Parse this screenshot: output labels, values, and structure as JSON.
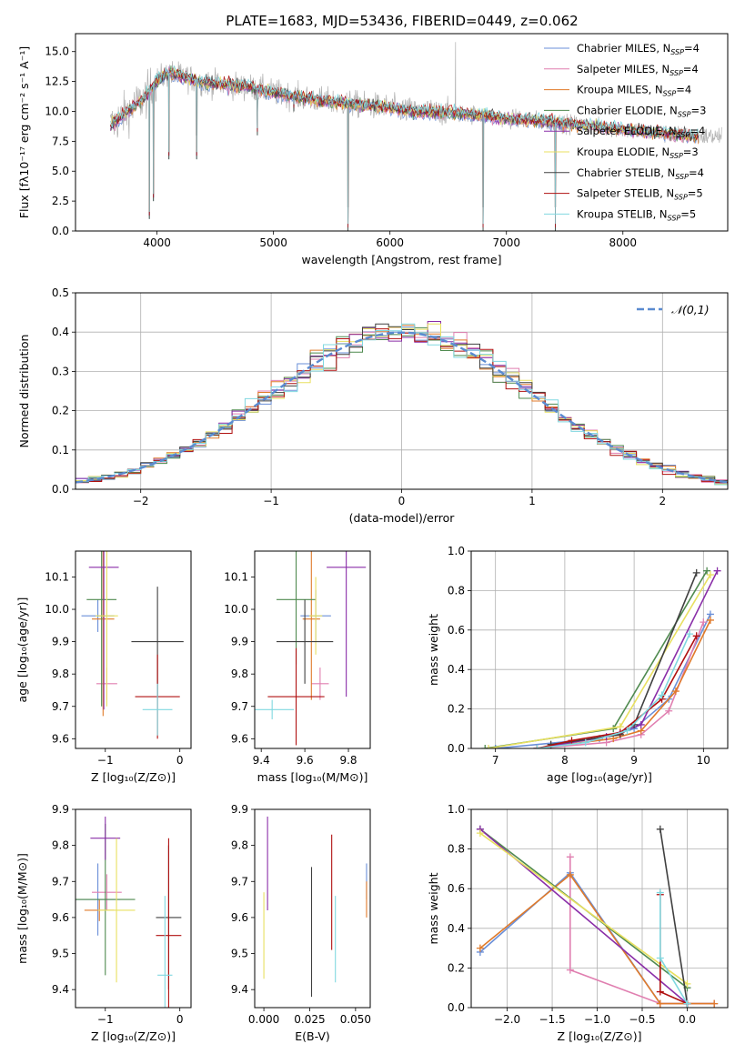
{
  "figure": {
    "title": "PLATE=1683, MJD=53436, FIBERID=0449, z=0.062",
    "palette": [
      "#6a8fd8",
      "#e07fb0",
      "#e07a2a",
      "#4f8a4f",
      "#8a2ea8",
      "#e8e060",
      "#404040",
      "#b01010",
      "#80d8e0",
      "#b0b0b0"
    ]
  },
  "models": [
    {
      "name": "Chabrier MILES",
      "nssp": "4",
      "color": "#6a8fd8"
    },
    {
      "name": "Salpeter MILES",
      "nssp": "4",
      "color": "#e07fb0"
    },
    {
      "name": "Kroupa MILES",
      "nssp": "4",
      "color": "#e07a2a"
    },
    {
      "name": "Chabrier ELODIE",
      "nssp": "3",
      "color": "#4f8a4f"
    },
    {
      "name": "Salpeter ELODIE",
      "nssp": "4",
      "color": "#8a2ea8"
    },
    {
      "name": "Kroupa ELODIE",
      "nssp": "3",
      "color": "#e8e060"
    },
    {
      "name": "Chabrier STELIB",
      "nssp": "4",
      "color": "#404040"
    },
    {
      "name": "Salpeter STELIB",
      "nssp": "5",
      "color": "#b01010"
    },
    {
      "name": "Kroupa STELIB",
      "nssp": "5",
      "color": "#80d8e0"
    }
  ],
  "chart_data": [
    {
      "id": "spectrum",
      "type": "line",
      "xlabel": "wavelength [Angstrom, rest frame]",
      "ylabel": "Flux [fλ10⁻¹⁷ erg cm⁻² s⁻¹ A⁻¹]",
      "xlim": [
        3300,
        8900
      ],
      "ylim": [
        0,
        16.5
      ],
      "xticks": [
        4000,
        5000,
        6000,
        7000,
        8000
      ],
      "yticks": [
        0.0,
        2.5,
        5.0,
        7.5,
        10.0,
        12.5,
        15.0
      ],
      "grid": false,
      "legend": "top-right",
      "continuum": [
        [
          3600,
          8.8
        ],
        [
          3700,
          9.6
        ],
        [
          3800,
          10.4
        ],
        [
          3900,
          11.2
        ],
        [
          4000,
          12.6
        ],
        [
          4100,
          13.2
        ],
        [
          4200,
          13.0
        ],
        [
          4400,
          12.4
        ],
        [
          4600,
          12.2
        ],
        [
          4800,
          12.0
        ],
        [
          5000,
          11.6
        ],
        [
          5200,
          11.2
        ],
        [
          5500,
          10.8
        ],
        [
          5800,
          10.5
        ],
        [
          6000,
          10.3
        ],
        [
          6200,
          10.0
        ],
        [
          6500,
          9.9
        ],
        [
          6800,
          9.7
        ],
        [
          7000,
          9.4
        ],
        [
          7300,
          9.2
        ],
        [
          7500,
          9.0
        ],
        [
          7800,
          8.7
        ],
        [
          8000,
          8.5
        ],
        [
          8300,
          8.2
        ],
        [
          8500,
          8.0
        ],
        [
          8700,
          7.9
        ]
      ],
      "observed_range": [
        3600,
        8850
      ],
      "model_range": [
        3600,
        8650
      ],
      "absorption_lines": [
        [
          3934,
          1.0
        ],
        [
          3969,
          2.5
        ],
        [
          4102,
          6.0
        ],
        [
          4340,
          6.0
        ],
        [
          4861,
          8.0
        ],
        [
          5175,
          10.0
        ],
        [
          5640,
          0.0
        ],
        [
          6800,
          0.0
        ],
        [
          7420,
          0.0
        ]
      ]
    },
    {
      "id": "residuals",
      "type": "step",
      "xlabel": "(data-model)/error",
      "ylabel": "Normed distribution",
      "xlim": [
        -2.5,
        2.5
      ],
      "ylim": [
        0.0,
        0.5
      ],
      "xticks": [
        -2,
        -1,
        0,
        1,
        2
      ],
      "yticks": [
        0.0,
        0.1,
        0.2,
        0.3,
        0.4,
        0.5
      ],
      "grid": true,
      "legend": "top-right",
      "legend_entries": [
        "𝒩(0,1)"
      ],
      "reference_color": "#5b8bd0",
      "bin_width": 0.1
    },
    {
      "id": "age-vs-metallicity",
      "type": "errorbar",
      "xlabel": "Z [log₁₀(Z/Z⊙)]",
      "ylabel": "age [log₁₀(age/yr)]",
      "xlim": [
        -1.4,
        0.15
      ],
      "ylim": [
        9.57,
        10.18
      ],
      "xticks": [
        -1,
        0
      ],
      "yticks": [
        9.6,
        9.7,
        9.8,
        9.9,
        10.0,
        10.1
      ],
      "grid": false,
      "points": [
        {
          "model": 0,
          "x": -1.1,
          "y": 9.98,
          "x_err": 0.22,
          "y_err": 0.05
        },
        {
          "model": 1,
          "x": -0.98,
          "y": 9.77,
          "x_err": 0.14,
          "y_err": 0.05
        },
        {
          "model": 2,
          "x": -1.03,
          "y": 9.97,
          "x_err": 0.15,
          "y_err": 0.3
        },
        {
          "model": 3,
          "x": -1.05,
          "y": 10.03,
          "x_err": 0.2,
          "y_err": 0.33
        },
        {
          "model": 4,
          "x": -1.02,
          "y": 10.13,
          "x_err": 0.2,
          "y_err": 0.44
        },
        {
          "model": 5,
          "x": -0.98,
          "y": 9.98,
          "x_err": 0.15,
          "y_err": 0.28
        },
        {
          "model": 6,
          "x": -0.3,
          "y": 9.9,
          "x_err": 0.35,
          "y_err": 0.17
        },
        {
          "model": 7,
          "x": -0.3,
          "y": 9.73,
          "x_err": 0.3,
          "y_err": 0.13
        },
        {
          "model": 8,
          "x": -0.3,
          "y": 9.69,
          "x_err": 0.2,
          "y_err": 0.08
        }
      ]
    },
    {
      "id": "age-vs-mass",
      "type": "errorbar",
      "xlabel": "mass [log₁₀(M/M⊙)]",
      "ylabel": "",
      "xlim": [
        9.37,
        9.9
      ],
      "ylim": [
        9.57,
        10.18
      ],
      "xticks": [
        9.4,
        9.6,
        9.8
      ],
      "yticks": [
        9.6,
        9.7,
        9.8,
        9.9,
        10.0,
        10.1
      ],
      "grid": false,
      "points": [
        {
          "model": 0,
          "x": 9.65,
          "y": 9.98,
          "x_err": 0.07,
          "y_err": 0.08
        },
        {
          "model": 1,
          "x": 9.67,
          "y": 9.77,
          "x_err": 0.04,
          "y_err": 0.05
        },
        {
          "model": 2,
          "x": 9.63,
          "y": 9.97,
          "x_err": 0.04,
          "y_err": 0.25
        },
        {
          "model": 3,
          "x": 9.56,
          "y": 10.03,
          "x_err": 0.09,
          "y_err": 0.2
        },
        {
          "model": 4,
          "x": 9.79,
          "y": 10.13,
          "x_err": 0.09,
          "y_err": 0.4
        },
        {
          "model": 5,
          "x": 9.65,
          "y": 9.98,
          "x_err": 0.03,
          "y_err": 0.12
        },
        {
          "model": 6,
          "x": 9.6,
          "y": 9.9,
          "x_err": 0.13,
          "y_err": 0.13
        },
        {
          "model": 7,
          "x": 9.56,
          "y": 9.73,
          "x_err": 0.13,
          "y_err": 0.15
        },
        {
          "model": 8,
          "x": 9.45,
          "y": 9.69,
          "x_err": 0.1,
          "y_err": 0.03
        }
      ]
    },
    {
      "id": "mass-weight-vs-age",
      "type": "line",
      "xlabel": "age [log₁₀(age/yr)]",
      "ylabel": "mass weight",
      "xlim": [
        6.65,
        10.35
      ],
      "ylim": [
        0,
        1
      ],
      "xticks": [
        7,
        8,
        9,
        10
      ],
      "yticks": [
        0.0,
        0.2,
        0.4,
        0.6,
        0.8,
        1.0
      ],
      "grid": true,
      "series": [
        {
          "model": 0,
          "points": [
            [
              7.0,
              0.0
            ],
            [
              8.5,
              0.05
            ],
            [
              9.0,
              0.1
            ],
            [
              9.5,
              0.25
            ],
            [
              10.1,
              0.68
            ]
          ]
        },
        {
          "model": 1,
          "points": [
            [
              7.6,
              0.0
            ],
            [
              8.6,
              0.03
            ],
            [
              9.1,
              0.07
            ],
            [
              9.5,
              0.19
            ],
            [
              10.0,
              0.64
            ]
          ]
        },
        {
          "model": 2,
          "points": [
            [
              7.6,
              0.0
            ],
            [
              8.7,
              0.05
            ],
            [
              9.1,
              0.09
            ],
            [
              9.6,
              0.29
            ],
            [
              10.1,
              0.65
            ]
          ]
        },
        {
          "model": 3,
          "points": [
            [
              6.85,
              0.0
            ],
            [
              8.7,
              0.1
            ],
            [
              10.05,
              0.9
            ]
          ]
        },
        {
          "model": 4,
          "points": [
            [
              7.6,
              0.0
            ],
            [
              8.6,
              0.06
            ],
            [
              9.1,
              0.12
            ],
            [
              10.2,
              0.9
            ]
          ]
        },
        {
          "model": 5,
          "points": [
            [
              6.9,
              0.0
            ],
            [
              8.8,
              0.11
            ],
            [
              10.1,
              0.88
            ]
          ]
        },
        {
          "model": 6,
          "points": [
            [
              7.8,
              0.02
            ],
            [
              8.8,
              0.07
            ],
            [
              9.0,
              0.12
            ],
            [
              9.9,
              0.89
            ]
          ]
        },
        {
          "model": 7,
          "points": [
            [
              7.6,
              0.0
            ],
            [
              8.1,
              0.04
            ],
            [
              8.8,
              0.08
            ],
            [
              9.4,
              0.25
            ],
            [
              9.9,
              0.57
            ]
          ]
        },
        {
          "model": 8,
          "points": [
            [
              7.6,
              0.0
            ],
            [
              8.3,
              0.03
            ],
            [
              8.9,
              0.09
            ],
            [
              9.4,
              0.27
            ],
            [
              9.8,
              0.58
            ]
          ]
        }
      ]
    },
    {
      "id": "mass-vs-metallicity",
      "type": "errorbar",
      "xlabel": "Z [log₁₀(Z/Z⊙)]",
      "ylabel": "mass [log₁₀(M/M⊙)]",
      "xlim": [
        -1.4,
        0.15
      ],
      "ylim": [
        9.35,
        9.9
      ],
      "xticks": [
        -1,
        0
      ],
      "yticks": [
        9.4,
        9.5,
        9.6,
        9.7,
        9.8,
        9.9
      ],
      "grid": false,
      "points": [
        {
          "model": 0,
          "x": -1.1,
          "y": 9.65,
          "x_err": 0.3,
          "y_err": 0.1
        },
        {
          "model": 1,
          "x": -0.98,
          "y": 9.67,
          "x_err": 0.2,
          "y_err": 0.05
        },
        {
          "model": 2,
          "x": -1.08,
          "y": 9.62,
          "x_err": 0.2,
          "y_err": 0.03
        },
        {
          "model": 3,
          "x": -1.0,
          "y": 9.65,
          "x_err": 0.4,
          "y_err": 0.21
        },
        {
          "model": 4,
          "x": -1.0,
          "y": 9.82,
          "x_err": 0.2,
          "y_err": 0.06
        },
        {
          "model": 5,
          "x": -0.85,
          "y": 9.62,
          "x_err": 0.25,
          "y_err": 0.2
        },
        {
          "model": 6,
          "x": -0.15,
          "y": 9.6,
          "x_err": 0.17,
          "y_err": 0.2
        },
        {
          "model": 7,
          "x": -0.15,
          "y": 9.55,
          "x_err": 0.17,
          "y_err": 0.27
        },
        {
          "model": 8,
          "x": -0.2,
          "y": 9.44,
          "x_err": 0.1,
          "y_err": 0.22
        }
      ]
    },
    {
      "id": "mass-vs-ebv",
      "type": "errorbar",
      "xlabel": "E(B-V)",
      "ylabel": "",
      "xlim": [
        -0.005,
        0.058
      ],
      "ylim": [
        9.35,
        9.9
      ],
      "xticks": [
        0.0,
        0.025,
        0.05
      ],
      "yticks": [
        9.4,
        9.5,
        9.6,
        9.7,
        9.8,
        9.9
      ],
      "grid": false,
      "points": [
        {
          "model": 0,
          "x": 0.056,
          "y": 9.7,
          "x_err": 0.0,
          "y_err": 0.05
        },
        {
          "model": 2,
          "x": 0.056,
          "y": 9.65,
          "x_err": 0.0,
          "y_err": 0.05
        },
        {
          "model": 4,
          "x": 0.002,
          "y": 9.75,
          "x_err": 0.0,
          "y_err": 0.13
        },
        {
          "model": 5,
          "x": 0.0,
          "y": 9.55,
          "x_err": 0.0,
          "y_err": 0.12
        },
        {
          "model": 6,
          "x": 0.026,
          "y": 9.56,
          "x_err": 0.0,
          "y_err": 0.18
        },
        {
          "model": 7,
          "x": 0.037,
          "y": 9.67,
          "x_err": 0.0,
          "y_err": 0.16
        },
        {
          "model": 8,
          "x": 0.039,
          "y": 9.54,
          "x_err": 0.0,
          "y_err": 0.12
        }
      ]
    },
    {
      "id": "mass-weight-vs-metallicity",
      "type": "line",
      "xlabel": "Z [log₁₀(Z/Z⊙)]",
      "ylabel": "mass weight",
      "xlim": [
        -2.4,
        0.45
      ],
      "ylim": [
        0,
        1
      ],
      "xticks": [
        -2.0,
        -1.5,
        -1.0,
        -0.5,
        0.0
      ],
      "yticks": [
        0.0,
        0.2,
        0.4,
        0.6,
        0.8,
        1.0
      ],
      "grid": true,
      "series": [
        {
          "model": 0,
          "points": [
            [
              -2.3,
              0.28
            ],
            [
              -1.3,
              0.68
            ],
            [
              -0.3,
              0.02
            ],
            [
              0.0,
              0.02
            ],
            [
              0.3,
              0.02
            ]
          ]
        },
        {
          "model": 1,
          "points": [
            [
              -1.3,
              0.76
            ],
            [
              -1.3,
              0.19
            ],
            [
              -0.3,
              0.02
            ],
            [
              0.3,
              0.02
            ]
          ]
        },
        {
          "model": 2,
          "points": [
            [
              -2.3,
              0.3
            ],
            [
              -1.3,
              0.67
            ],
            [
              -0.3,
              0.02
            ],
            [
              0.0,
              0.02
            ],
            [
              0.3,
              0.02
            ]
          ]
        },
        {
          "model": 3,
          "points": [
            [
              -2.3,
              0.9
            ],
            [
              0.0,
              0.1
            ]
          ]
        },
        {
          "model": 4,
          "points": [
            [
              -2.3,
              0.9
            ],
            [
              0.0,
              0.02
            ]
          ]
        },
        {
          "model": 5,
          "points": [
            [
              -2.3,
              0.88
            ],
            [
              0.0,
              0.12
            ]
          ]
        },
        {
          "model": 6,
          "points": [
            [
              -0.3,
              0.9
            ],
            [
              0.0,
              0.02
            ]
          ]
        },
        {
          "model": 7,
          "points": [
            [
              -0.3,
              0.57
            ],
            [
              -0.3,
              0.08
            ],
            [
              0.0,
              0.02
            ]
          ]
        },
        {
          "model": 8,
          "points": [
            [
              -0.3,
              0.58
            ],
            [
              -0.3,
              0.25
            ],
            [
              0.0,
              0.02
            ]
          ]
        }
      ]
    }
  ]
}
